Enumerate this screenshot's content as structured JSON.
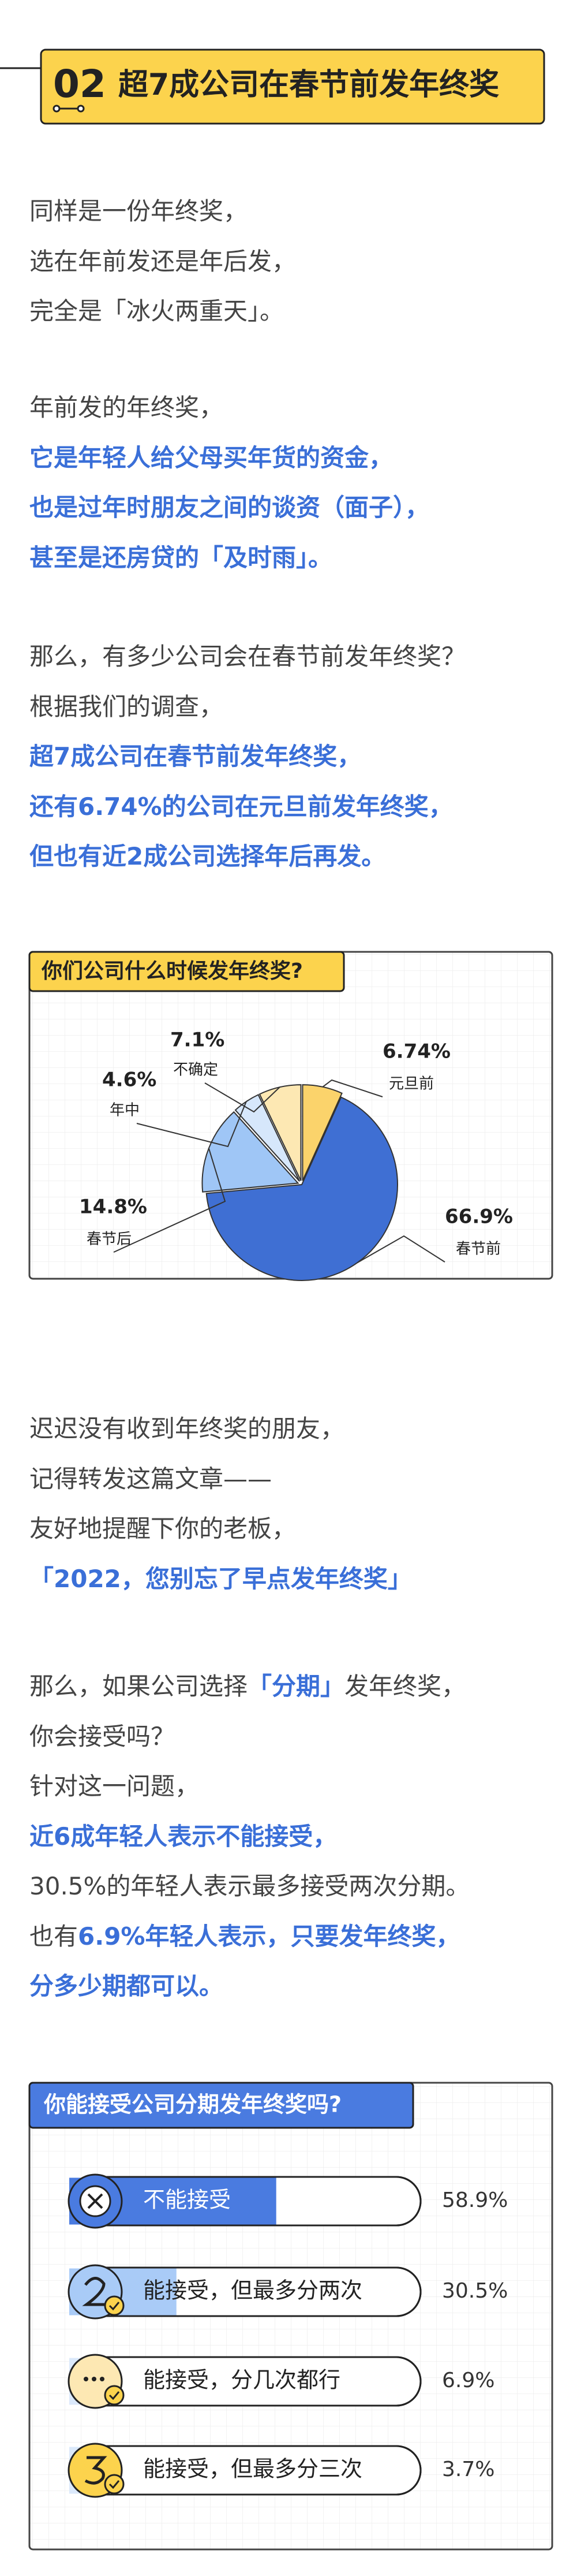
{
  "header": {
    "number": "02",
    "title": "超7成公司在春节前发年终奖"
  },
  "paragraphs": [
    [
      [
        {
          "text": "同样是一份年终奖，",
          "highlight": false
        }
      ],
      [
        {
          "text": "选在年前发还是年后发，",
          "highlight": false
        }
      ],
      [
        {
          "text": "完全是「冰火两重天」。",
          "highlight": false
        }
      ]
    ],
    [
      [
        {
          "text": "年前发的年终奖，",
          "highlight": false
        }
      ],
      [
        {
          "text": "它是年轻人给父母买年货的资金，",
          "highlight": true
        }
      ],
      [
        {
          "text": "也是过年时朋友之间的谈资（面子），",
          "highlight": true
        }
      ],
      [
        {
          "text": "甚至是还房贷的「及时雨」。",
          "highlight": true
        }
      ]
    ],
    [
      [
        {
          "text": "那么，有多少公司会在春节前发年终奖？",
          "highlight": false
        }
      ],
      [
        {
          "text": "根据我们的调查，",
          "highlight": false
        }
      ],
      [
        {
          "text": "超7成公司在春节前发年终奖，",
          "highlight": true
        }
      ],
      [
        {
          "text": "还有6.74%的公司在元旦前发年终奖，",
          "highlight": true
        }
      ],
      [
        {
          "text": "但也有近2成公司选择年后再发。",
          "highlight": true
        }
      ]
    ],
    [
      [
        {
          "text": "迟迟没有收到年终奖的朋友，",
          "highlight": false
        }
      ],
      [
        {
          "text": "记得转发这篇文章——",
          "highlight": false
        }
      ],
      [
        {
          "text": "友好地提醒下你的老板，",
          "highlight": false
        }
      ],
      [
        {
          "text": "「2022，您别忘了早点发年终奖」",
          "highlight": true
        }
      ]
    ],
    [
      [
        {
          "text": "那么，如果公司选择",
          "highlight": false
        },
        {
          "text": "「分期」",
          "highlight": true
        },
        {
          "text": "发年终奖，",
          "highlight": false
        }
      ],
      [
        {
          "text": "你会接受吗？",
          "highlight": false
        }
      ],
      [
        {
          "text": "针对这一问题，",
          "highlight": false
        }
      ],
      [
        {
          "text": "近6成年轻人表示不能接受，",
          "highlight": true
        }
      ],
      [
        {
          "text": "30.5%的年轻人表示最多接受两次分期。",
          "highlight": false
        }
      ],
      [
        {
          "text": "也有",
          "highlight": false
        },
        {
          "text": "6.9%年轻人表示，只要发年终奖，",
          "highlight": true
        }
      ],
      [
        {
          "text": "分多少期都可以。",
          "highlight": true
        }
      ]
    ]
  ],
  "chart_data": [
    {
      "type": "pie",
      "title": "你们公司什么时候发年终奖?",
      "categories": [
        "元旦前",
        "春节前",
        "春节后",
        "年中",
        "不确定"
      ],
      "values": [
        6.74,
        66.9,
        14.8,
        4.6,
        7.1
      ],
      "value_labels": [
        "6.74%",
        "66.9%",
        "14.8%",
        "4.6%",
        "7.1%"
      ],
      "colors": [
        "#fbd36b",
        "#3f6fd3",
        "#9fc6f6",
        "#d6e7fb",
        "#fde8b3"
      ]
    },
    {
      "type": "bar",
      "title": "你能接受公司分期发年终奖吗?",
      "categories": [
        "不能接受",
        "能接受，但最多分两次",
        "能接受，分几次都行",
        "能接受，但最多分三次"
      ],
      "values": [
        58.9,
        30.5,
        6.9,
        3.7
      ],
      "value_labels": [
        "58.9%",
        "30.5%",
        "6.9%",
        "3.7%"
      ],
      "colors": [
        "#4a7be0",
        "#a9cbf7",
        "#dbe9fb",
        "#dbe9fb"
      ]
    }
  ]
}
